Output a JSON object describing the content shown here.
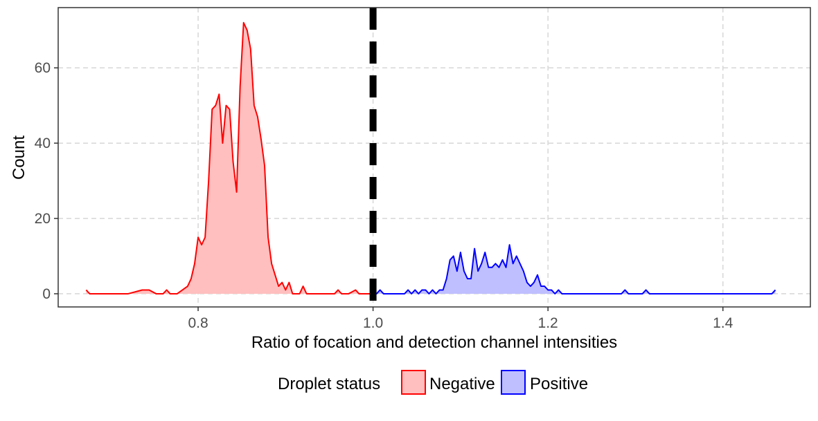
{
  "chart_data": {
    "type": "area",
    "xlabel": "Ratio of focation and detection channel intensities",
    "ylabel": "Count",
    "xlim": [
      0.64,
      1.5
    ],
    "ylim": [
      -3.5,
      76
    ],
    "x_ticks": [
      0.8,
      1.0,
      1.2,
      1.4
    ],
    "x_tick_labels": [
      "0.8",
      "1.0",
      "1.2",
      "1.4"
    ],
    "y_ticks": [
      0,
      20,
      40,
      60
    ],
    "y_tick_labels": [
      "0",
      "20",
      "40",
      "60"
    ],
    "grid": true,
    "threshold": 1.0,
    "legend": {
      "title": "Droplet status",
      "position": "bottom",
      "entries": [
        "Negative",
        "Positive"
      ]
    },
    "series": [
      {
        "name": "Negative",
        "line_color": "#ff0000",
        "fill_color": "#ffbfbf",
        "x": [
          0.672,
          0.676,
          0.68,
          0.72,
          0.736,
          0.744,
          0.752,
          0.76,
          0.764,
          0.768,
          0.776,
          0.788,
          0.792,
          0.796,
          0.8,
          0.804,
          0.808,
          0.812,
          0.816,
          0.82,
          0.824,
          0.828,
          0.832,
          0.836,
          0.84,
          0.844,
          0.848,
          0.852,
          0.856,
          0.86,
          0.864,
          0.868,
          0.872,
          0.876,
          0.88,
          0.884,
          0.888,
          0.892,
          0.896,
          0.9,
          0.904,
          0.908,
          0.912,
          0.916,
          0.92,
          0.924,
          0.928,
          0.932,
          0.936,
          0.94,
          0.956,
          0.96,
          0.964,
          0.968,
          0.972,
          0.98,
          0.984,
          0.988,
          0.992,
          1.0
        ],
        "y": [
          1,
          0,
          0,
          0,
          1,
          1,
          0,
          0,
          1,
          0,
          0,
          2,
          4,
          8,
          15,
          13,
          15,
          30,
          49,
          50,
          53,
          40,
          50,
          49,
          35,
          27,
          55,
          72,
          70,
          65,
          50,
          47,
          41,
          34,
          15,
          8,
          5,
          2,
          3,
          1,
          3,
          0,
          0,
          0,
          2,
          0,
          0,
          0,
          0,
          0,
          0,
          1,
          0,
          0,
          0,
          1,
          0,
          0,
          0,
          0
        ]
      },
      {
        "name": "Positive",
        "line_color": "#0000ff",
        "fill_color": "#bfbfff",
        "x": [
          1.0,
          1.004,
          1.008,
          1.012,
          1.036,
          1.04,
          1.044,
          1.048,
          1.052,
          1.056,
          1.06,
          1.064,
          1.068,
          1.072,
          1.076,
          1.08,
          1.084,
          1.088,
          1.092,
          1.096,
          1.1,
          1.104,
          1.108,
          1.112,
          1.116,
          1.12,
          1.124,
          1.128,
          1.132,
          1.136,
          1.14,
          1.144,
          1.148,
          1.152,
          1.156,
          1.16,
          1.164,
          1.168,
          1.172,
          1.176,
          1.18,
          1.184,
          1.188,
          1.192,
          1.196,
          1.2,
          1.204,
          1.208,
          1.212,
          1.216,
          1.284,
          1.288,
          1.292,
          1.308,
          1.312,
          1.316,
          1.456,
          1.46
        ],
        "y": [
          0,
          0,
          1,
          0,
          0,
          1,
          0,
          1,
          0,
          1,
          1,
          0,
          1,
          0,
          1,
          1,
          4,
          9,
          10,
          6,
          11,
          6,
          4,
          4,
          12,
          6,
          8,
          11,
          7,
          7,
          8,
          7,
          9,
          7,
          13,
          8,
          10,
          8,
          6,
          3,
          2,
          3,
          5,
          2,
          2,
          1,
          1,
          0,
          1,
          0,
          0,
          1,
          0,
          0,
          1,
          0,
          0,
          1
        ]
      }
    ]
  }
}
